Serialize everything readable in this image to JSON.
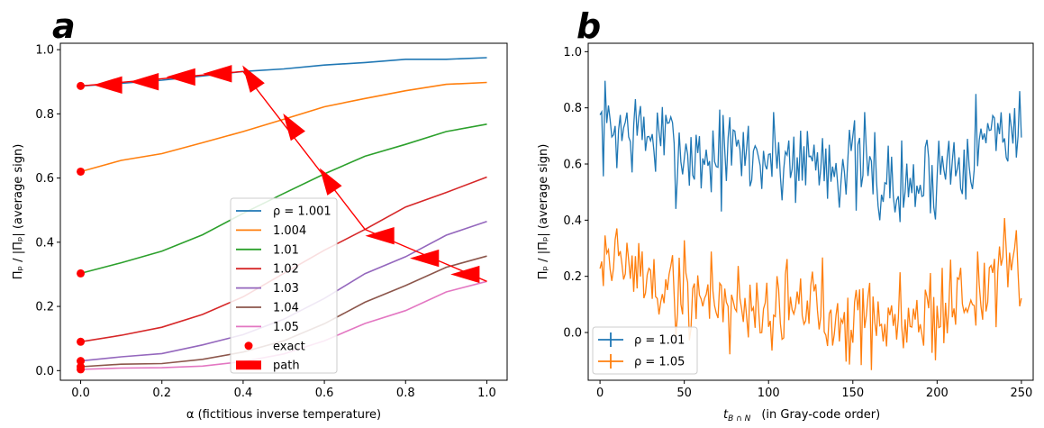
{
  "chart_data": [
    {
      "panel": "a",
      "type": "line",
      "xlabel": "α (fictitious inverse temperature)",
      "ylabel": "Π_ρ / |Π_ρ| (average sign)",
      "xlim": [
        -0.05,
        1.05
      ],
      "ylim": [
        -0.03,
        1.02
      ],
      "xticks": [
        0.0,
        0.2,
        0.4,
        0.6,
        0.8,
        1.0
      ],
      "xtick_labels": [
        "0.0",
        "0.2",
        "0.4",
        "0.6",
        "0.8",
        "1.0"
      ],
      "yticks": [
        0.0,
        0.2,
        0.4,
        0.6,
        0.8,
        1.0
      ],
      "ytick_labels": [
        "0.0",
        "0.2",
        "0.4",
        "0.6",
        "0.8",
        "1.0"
      ],
      "x": [
        0.0,
        0.1,
        0.2,
        0.3,
        0.4,
        0.5,
        0.6,
        0.7,
        0.8,
        0.9,
        1.0
      ],
      "series": [
        {
          "name": "ρ = 1.001",
          "color": "#1f77b4",
          "values": [
            0.887,
            0.895,
            0.905,
            0.918,
            0.932,
            0.94,
            0.952,
            0.96,
            0.97,
            0.97,
            0.975
          ]
        },
        {
          "name": "1.004",
          "color": "#ff7f0e",
          "values": [
            0.62,
            0.655,
            0.676,
            0.71,
            0.745,
            0.783,
            0.822,
            0.848,
            0.872,
            0.892,
            0.898
          ]
        },
        {
          "name": "1.01",
          "color": "#2ca02c",
          "values": [
            0.303,
            0.336,
            0.372,
            0.423,
            0.49,
            0.552,
            0.613,
            0.668,
            0.705,
            0.745,
            0.768
          ]
        },
        {
          "name": "1.02",
          "color": "#d62728",
          "values": [
            0.09,
            0.11,
            0.135,
            0.175,
            0.23,
            0.303,
            0.375,
            0.44,
            0.51,
            0.555,
            0.603
          ]
        },
        {
          "name": "1.03",
          "color": "#9467bd",
          "values": [
            0.03,
            0.043,
            0.053,
            0.08,
            0.112,
            0.16,
            0.225,
            0.302,
            0.355,
            0.422,
            0.465
          ]
        },
        {
          "name": "1.04",
          "color": "#8c564b",
          "values": [
            0.012,
            0.02,
            0.022,
            0.035,
            0.058,
            0.093,
            0.146,
            0.213,
            0.265,
            0.322,
            0.357
          ]
        },
        {
          "name": "1.05",
          "color": "#e377c2",
          "values": [
            0.004,
            0.008,
            0.009,
            0.014,
            0.028,
            0.052,
            0.093,
            0.147,
            0.187,
            0.245,
            0.278
          ]
        }
      ],
      "exact": {
        "name": "exact",
        "color": "#ff0000",
        "x": [
          0,
          0,
          0,
          0,
          0,
          0,
          0
        ],
        "y": [
          0.887,
          0.62,
          0.303,
          0.09,
          0.03,
          0.012,
          0.004
        ]
      },
      "path": {
        "name": "path",
        "color": "#ff0000",
        "points": [
          [
            1.0,
            0.278
          ],
          [
            0.7,
            0.44
          ],
          [
            0.4,
            0.932
          ],
          [
            0.0,
            0.887
          ]
        ],
        "arrows": [
          [
            0.95,
            0.3,
            "left"
          ],
          [
            0.85,
            0.35,
            "left"
          ],
          [
            0.74,
            0.42,
            "left"
          ],
          [
            0.61,
            0.59,
            "up"
          ],
          [
            0.52,
            0.76,
            "up"
          ],
          [
            0.42,
            0.91,
            "up"
          ],
          [
            0.34,
            0.925,
            "left"
          ],
          [
            0.25,
            0.915,
            "left"
          ],
          [
            0.16,
            0.9,
            "left"
          ],
          [
            0.07,
            0.89,
            "left"
          ]
        ]
      },
      "legend": {
        "loc": "lower-center",
        "entries": [
          "ρ = 1.001",
          "1.004",
          "1.01",
          "1.02",
          "1.03",
          "1.04",
          "1.05",
          "exact",
          "path"
        ]
      }
    },
    {
      "panel": "b",
      "type": "line",
      "xlabel": "t_{B∩N}   (in Gray-code order)",
      "ylabel": "Π_ρ / |Π_ρ| (average sign)",
      "xlim": [
        -7,
        257
      ],
      "ylim": [
        -0.17,
        1.03
      ],
      "xticks": [
        0,
        50,
        100,
        150,
        200,
        250
      ],
      "xtick_labels": [
        "0",
        "50",
        "100",
        "150",
        "200",
        "250"
      ],
      "yticks": [
        0.0,
        0.2,
        0.4,
        0.6,
        0.8,
        1.0
      ],
      "ytick_labels": [
        "0.0",
        "0.2",
        "0.4",
        "0.6",
        "0.8",
        "1.0"
      ],
      "x_count": 251,
      "series": [
        {
          "name": "ρ =  1.01",
          "color": "#1f77b4",
          "knots_x": [
            0,
            20,
            40,
            60,
            80,
            100,
            120,
            140,
            160,
            175,
            190,
            200,
            220,
            240,
            250
          ],
          "knots_y": [
            0.73,
            0.72,
            0.67,
            0.62,
            0.64,
            0.62,
            0.62,
            0.61,
            0.58,
            0.5,
            0.53,
            0.58,
            0.66,
            0.74,
            0.7
          ],
          "amplitude": 0.085,
          "seed": 7
        },
        {
          "name": "ρ =  1.05",
          "color": "#ff7f0e",
          "knots_x": [
            0,
            20,
            40,
            60,
            80,
            100,
            120,
            140,
            160,
            175,
            190,
            200,
            220,
            240,
            250
          ],
          "knots_y": [
            0.3,
            0.22,
            0.15,
            0.13,
            0.1,
            0.09,
            0.1,
            0.08,
            0.06,
            0.03,
            0.05,
            0.08,
            0.13,
            0.24,
            0.16
          ],
          "amplitude": 0.085,
          "seed": 19
        }
      ],
      "legend": {
        "loc": "lower-left",
        "entries": [
          "ρ =  1.01",
          "ρ =  1.05"
        ]
      }
    }
  ],
  "panels": {
    "a_letter": "a",
    "b_letter": "b"
  },
  "text": {
    "a_ylabel": "Πₚ / |Πₚ| (average sign)",
    "a_xlabel": "α (fictitious inverse temperature)",
    "b_ylabel": "Πₚ / |Πₚ| (average sign)",
    "b_xlabel_main": "t",
    "b_xlabel_sub": "B ∩ N",
    "b_xlabel_rest": "(in Gray-code order)"
  },
  "legend_a": {
    "items": [
      {
        "label": "ρ = 1.001",
        "color": "#1f77b4",
        "kind": "line"
      },
      {
        "label": "1.004",
        "color": "#ff7f0e",
        "kind": "line"
      },
      {
        "label": "1.01",
        "color": "#2ca02c",
        "kind": "line"
      },
      {
        "label": "1.02",
        "color": "#d62728",
        "kind": "line"
      },
      {
        "label": "1.03",
        "color": "#9467bd",
        "kind": "line"
      },
      {
        "label": "1.04",
        "color": "#8c564b",
        "kind": "line"
      },
      {
        "label": "1.05",
        "color": "#e377c2",
        "kind": "line"
      },
      {
        "label": "exact",
        "color": "#ff0000",
        "kind": "dot"
      },
      {
        "label": "path",
        "color": "#ff0000",
        "kind": "patch"
      }
    ]
  },
  "legend_b": {
    "items": [
      {
        "label": "ρ =  1.01",
        "color": "#1f77b4"
      },
      {
        "label": "ρ =  1.05",
        "color": "#ff7f0e"
      }
    ]
  }
}
